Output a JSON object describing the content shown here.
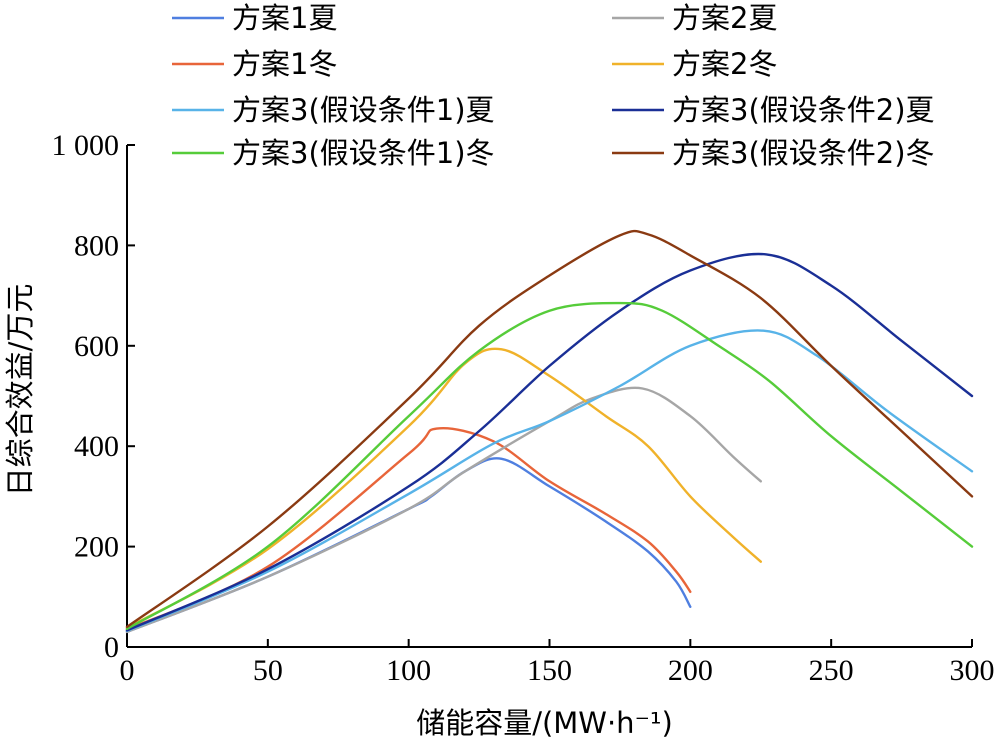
{
  "chart_data": {
    "type": "line",
    "title": "",
    "xlabel": "储能容量/(MW·h⁻¹)",
    "ylabel": "日综合效益/万元",
    "xlim": [
      0,
      300
    ],
    "ylim": [
      0,
      1000
    ],
    "x_ticks": [
      "0",
      "50",
      "100",
      "150",
      "200",
      "250",
      "300"
    ],
    "y_ticks": [
      "0",
      "200",
      "400",
      "600",
      "800",
      "1 000"
    ],
    "x_tick_values": [
      0,
      50,
      100,
      150,
      200,
      250,
      300
    ],
    "y_tick_values": [
      0,
      200,
      400,
      600,
      800,
      1000
    ],
    "grid": false,
    "legend": "top, two columns",
    "series": [
      {
        "name": "方案1夏",
        "color": "#4f7fe0",
        "x": [
          0,
          50,
          100,
          108,
          120,
          133,
          150,
          170,
          185,
          195,
          200
        ],
        "y": [
          30,
          140,
          275,
          300,
          350,
          375,
          320,
          250,
          190,
          130,
          80
        ]
      },
      {
        "name": "方案1冬",
        "color": "#e8653a",
        "x": [
          0,
          50,
          100,
          110,
          130,
          150,
          170,
          185,
          195,
          200
        ],
        "y": [
          35,
          160,
          385,
          435,
          410,
          330,
          265,
          210,
          150,
          110
        ]
      },
      {
        "name": "方案2夏",
        "color": "#a6a6a6",
        "x": [
          0,
          50,
          100,
          120,
          150,
          165,
          183,
          200,
          215,
          225
        ],
        "y": [
          30,
          140,
          275,
          350,
          450,
          495,
          515,
          460,
          380,
          330
        ]
      },
      {
        "name": "方案2冬",
        "color": "#f0b22a",
        "x": [
          0,
          50,
          100,
          120,
          133,
          150,
          170,
          185,
          200,
          215,
          225
        ],
        "y": [
          38,
          195,
          440,
          565,
          593,
          540,
          460,
          400,
          300,
          220,
          170
        ]
      },
      {
        "name": "方案3(假设条件1)夏",
        "color": "#58b3e8",
        "x": [
          0,
          50,
          100,
          130,
          150,
          175,
          200,
          226,
          245,
          270,
          300
        ],
        "y": [
          32,
          150,
          305,
          405,
          450,
          520,
          600,
          630,
          580,
          470,
          350
        ]
      },
      {
        "name": "方案3(假设条件2)夏",
        "color": "#1a2f96",
        "x": [
          0,
          50,
          100,
          125,
          150,
          175,
          200,
          227,
          250,
          275,
          300
        ],
        "y": [
          33,
          155,
          320,
          430,
          560,
          670,
          750,
          782,
          720,
          610,
          500
        ]
      },
      {
        "name": "方案3(假设条件1)冬",
        "color": "#56cc3a",
        "x": [
          0,
          50,
          100,
          125,
          150,
          175,
          190,
          210,
          228,
          250,
          275,
          300
        ],
        "y": [
          36,
          200,
          460,
          590,
          670,
          685,
          670,
          600,
          530,
          420,
          310,
          200
        ]
      },
      {
        "name": "方案3(假设条件2)冬",
        "color": "#8a3a12",
        "x": [
          0,
          50,
          100,
          125,
          150,
          175,
          185,
          200,
          225,
          250,
          275,
          300
        ],
        "y": [
          40,
          240,
          495,
          640,
          740,
          820,
          822,
          780,
          695,
          560,
          430,
          300
        ]
      }
    ]
  }
}
